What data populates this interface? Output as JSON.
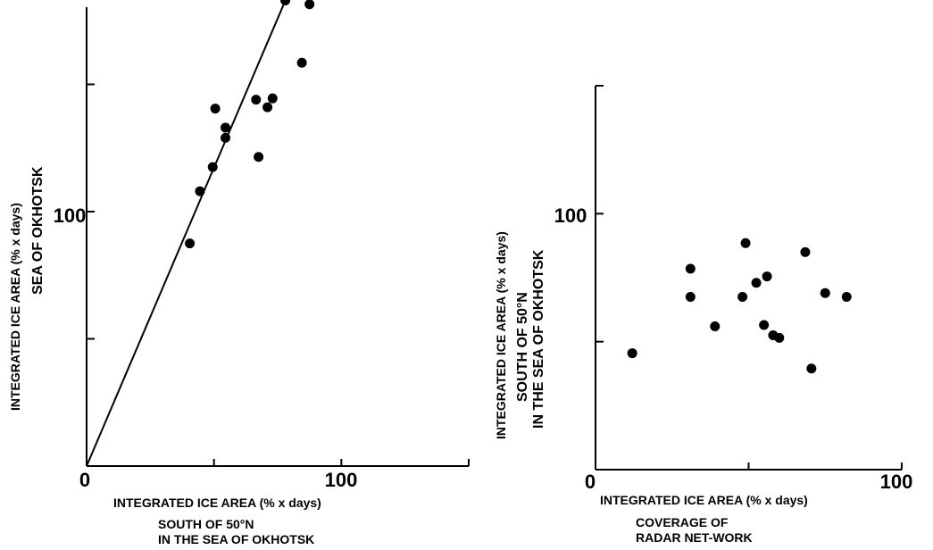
{
  "chart_data": [
    {
      "type": "scatter",
      "title": "",
      "xlabel": [
        "INTEGRATED ICE AREA (% x days)",
        "SOUTH OF 50°N",
        "IN THE SEA OF OKHOTSK"
      ],
      "ylabel": [
        "INTEGRATED ICE AREA (% x days)",
        "SEA OF OKHOTSK"
      ],
      "xlim": [
        0,
        150
      ],
      "ylim": [
        0,
        180
      ],
      "xticks": [
        0,
        50,
        100,
        150
      ],
      "yticks": [
        0,
        50,
        100,
        150
      ],
      "xtick_labels": [
        "0",
        "",
        "100",
        ""
      ],
      "ytick_labels": [
        "",
        "",
        "100",
        ""
      ],
      "grid": false,
      "series": [
        {
          "x": [
            40.5,
            44.5,
            49.5,
            50.5,
            54.5,
            54.5,
            66.5,
            67.5,
            71,
            73,
            84.5,
            78,
            87.5
          ],
          "y": [
            87.5,
            108,
            117.5,
            140.5,
            133,
            129,
            144,
            121.5,
            141,
            144.5,
            158.5,
            183,
            181.5
          ]
        }
      ],
      "fit_line": {
        "x": [
          0,
          84
        ],
        "y": [
          0,
          197
        ]
      }
    },
    {
      "type": "scatter",
      "title": "",
      "xlabel": [
        "INTEGRATED ICE AREA (% x days)",
        "COVERAGE OF",
        "RADAR NET-WORK"
      ],
      "ylabel": [
        "INTEGRATED ICE AREA (% x days)",
        "SOUTH OF 50°N",
        "IN THE SEA OF OKHOTSK"
      ],
      "xlim": [
        0,
        100
      ],
      "ylim": [
        0,
        150
      ],
      "xticks": [
        0,
        50,
        100
      ],
      "yticks": [
        0,
        50,
        100,
        150
      ],
      "xtick_labels": [
        "0",
        "",
        "100"
      ],
      "ytick_labels": [
        "",
        "",
        "100",
        ""
      ],
      "grid": false,
      "series": [
        {
          "x": [
            12,
            31,
            31,
            39,
            48,
            49,
            52.5,
            55,
            56,
            58,
            60,
            68.5,
            70.5,
            75,
            82
          ],
          "y": [
            45.5,
            78.5,
            67.5,
            56,
            67.5,
            88.5,
            73,
            56.5,
            75.5,
            52.5,
            51.5,
            85,
            39.5,
            69,
            67.5
          ]
        }
      ]
    }
  ]
}
